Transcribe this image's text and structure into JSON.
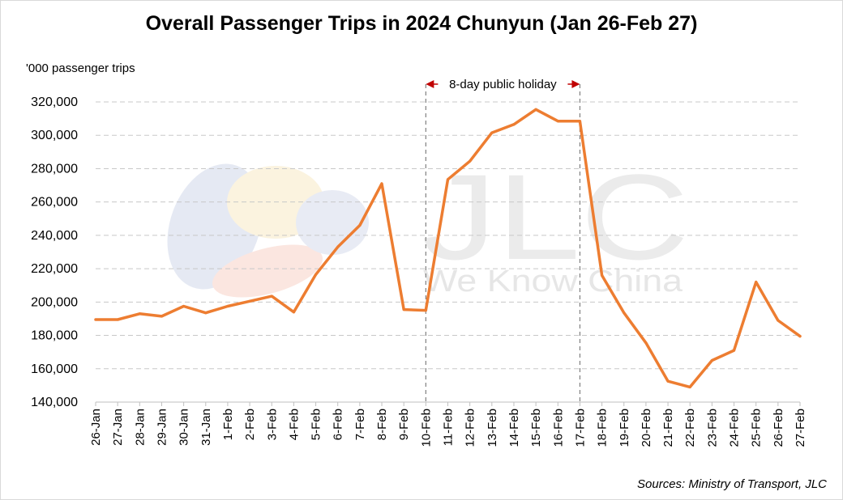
{
  "chart_data": {
    "type": "line",
    "title": "Overall Passenger Trips in 2024 Chunyun (Jan 26-Feb 27)",
    "ylabel": "'000 passenger trips",
    "xlabel": "",
    "ylim": [
      140000,
      320000
    ],
    "yticks": [
      140000,
      160000,
      180000,
      200000,
      220000,
      240000,
      260000,
      280000,
      300000,
      320000
    ],
    "grid": "horizontal dashed",
    "categories": [
      "26-Jan",
      "27-Jan",
      "28-Jan",
      "29-Jan",
      "30-Jan",
      "31-Jan",
      "1-Feb",
      "2-Feb",
      "3-Feb",
      "4-Feb",
      "5-Feb",
      "6-Feb",
      "7-Feb",
      "8-Feb",
      "9-Feb",
      "10-Feb",
      "11-Feb",
      "12-Feb",
      "13-Feb",
      "14-Feb",
      "15-Feb",
      "16-Feb",
      "17-Feb",
      "18-Feb",
      "19-Feb",
      "20-Feb",
      "21-Feb",
      "22-Feb",
      "23-Feb",
      "24-Feb",
      "25-Feb",
      "26-Feb",
      "27-Feb"
    ],
    "series": [
      {
        "color": "#ED7D31",
        "values": [
          189500,
          189500,
          193000,
          191500,
          197500,
          193500,
          197500,
          200500,
          203500,
          194000,
          216500,
          233000,
          246000,
          271000,
          195500,
          195000,
          273500,
          284500,
          301500,
          306500,
          315500,
          308500,
          308500,
          216000,
          193500,
          175500,
          152500,
          149000,
          165000,
          171000,
          212000,
          189000,
          179500
        ]
      }
    ],
    "annotation": {
      "text": "8-day public holiday",
      "start": "10-Feb",
      "end": "17-Feb",
      "color": "#C00000"
    },
    "source": "Sources: Ministry of Transport, JLC",
    "watermark": {
      "brand": "JLC",
      "slogan": "We Know China"
    }
  }
}
